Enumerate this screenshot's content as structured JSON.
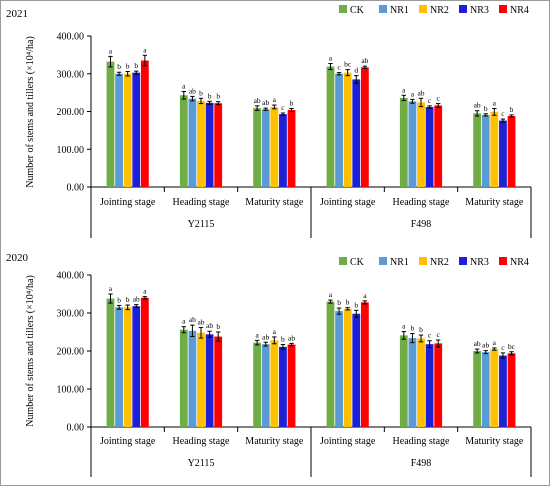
{
  "colors": {
    "CK": "#70ad47",
    "NR1": "#5b9bd5",
    "NR2": "#ffc000",
    "NR3": "#1f1fd6",
    "NR4": "#ff0000"
  },
  "chart_data": [
    {
      "type": "bar",
      "panel_label": "2021",
      "ylabel": "Number of stems and tillers (×10⁴/ha)",
      "ylim": [
        0,
        400
      ],
      "yticks": [
        "0.00",
        "100.00",
        "200.00",
        "300.00",
        "400.00"
      ],
      "legend_position": "top-right",
      "groups": [
        "Y2115",
        "F498"
      ],
      "stages": [
        "Jointing stage",
        "Heading stage",
        "Maturity stage"
      ],
      "series": [
        {
          "name": "CK",
          "values": [
            332,
            243,
            209,
            319,
            236,
            195
          ],
          "errors": [
            14,
            10,
            6,
            8,
            7,
            7
          ]
        },
        {
          "name": "NR1",
          "values": [
            300,
            234,
            206,
            300,
            227,
            191
          ],
          "errors": [
            4,
            6,
            3,
            3,
            5,
            3
          ]
        },
        {
          "name": "NR2",
          "values": [
            300,
            228,
            212,
            303,
            224,
            199
          ],
          "errors": [
            6,
            7,
            5,
            8,
            11,
            9
          ]
        },
        {
          "name": "NR3",
          "values": [
            303,
            223,
            193,
            285,
            212,
            176
          ],
          "errors": [
            4,
            4,
            3,
            10,
            3,
            4
          ]
        },
        {
          "name": "NR4",
          "values": [
            335,
            222,
            204,
            317,
            216,
            188
          ],
          "errors": [
            14,
            4,
            4,
            3,
            5,
            3
          ]
        }
      ],
      "letters": [
        [
          "a",
          "a",
          "ab",
          "a",
          "a",
          "ab"
        ],
        [
          "b",
          "ab",
          "ab",
          "c",
          "a",
          "b"
        ],
        [
          "b",
          "b",
          "a",
          "bc",
          "ab",
          "a"
        ],
        [
          "b",
          "b",
          "c",
          "d",
          "c",
          "c"
        ],
        [
          "a",
          "b",
          "b",
          "ab",
          "c",
          "b"
        ]
      ]
    },
    {
      "type": "bar",
      "panel_label": "2020",
      "ylabel": "Number of stems and tillers (×10⁴/ha)",
      "ylim": [
        0,
        400
      ],
      "yticks": [
        "0.00",
        "100.00",
        "200.00",
        "300.00",
        "400.00"
      ],
      "legend_position": "top-right",
      "groups": [
        "Y2115",
        "F498"
      ],
      "stages": [
        "Jointing stage",
        "Heading stage",
        "Maturity stage"
      ],
      "series": [
        {
          "name": "CK",
          "values": [
            338,
            256,
            222,
            330,
            241,
            200
          ],
          "errors": [
            12,
            8,
            6,
            4,
            10,
            5
          ]
        },
        {
          "name": "NR1",
          "values": [
            315,
            253,
            218,
            305,
            234,
            197
          ],
          "errors": [
            5,
            15,
            5,
            8,
            12,
            4
          ]
        },
        {
          "name": "NR2",
          "values": [
            315,
            248,
            228,
            311,
            233,
            205
          ],
          "errors": [
            6,
            14,
            9,
            3,
            9,
            3
          ]
        },
        {
          "name": "NR3",
          "values": [
            318,
            244,
            211,
            298,
            218,
            188
          ],
          "errors": [
            4,
            8,
            6,
            9,
            9,
            7
          ]
        },
        {
          "name": "NR4",
          "values": [
            340,
            238,
            217,
            328,
            220,
            194
          ],
          "errors": [
            3,
            12,
            3,
            4,
            9,
            4
          ]
        }
      ],
      "letters": [
        [
          "a",
          "a",
          "a",
          "a",
          "a",
          "ab"
        ],
        [
          "b",
          "ab",
          "ab",
          "b",
          "b",
          "ab"
        ],
        [
          "b",
          "ab",
          "a",
          "b",
          "b",
          "a"
        ],
        [
          "ab",
          "ab",
          "b",
          "b",
          "c",
          "c"
        ],
        [
          "a",
          "b",
          "ab",
          "a",
          "c",
          "bc"
        ]
      ]
    }
  ]
}
